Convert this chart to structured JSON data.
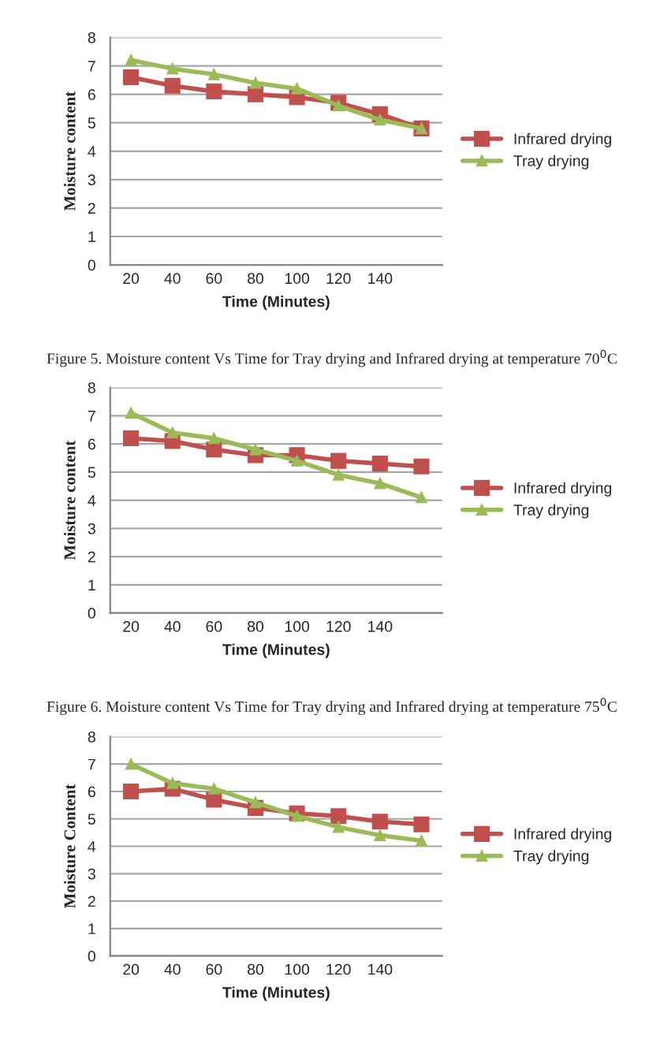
{
  "chart_data": [
    {
      "type": "line",
      "xlabel": "Time (Minutes)",
      "ylabel": "Moisture content",
      "categories": [
        "20",
        "40",
        "60",
        "80",
        "100",
        "120",
        "140",
        null
      ],
      "ylim": [
        0,
        8
      ],
      "yticks": [
        0,
        1,
        2,
        3,
        4,
        5,
        6,
        7,
        8
      ],
      "grid": "y",
      "legend": "right",
      "series": [
        {
          "name": "Infrared drying",
          "color": "#c0504d",
          "marker": "square",
          "values": [
            6.6,
            6.3,
            6.1,
            6.0,
            5.9,
            5.7,
            5.3,
            4.8
          ]
        },
        {
          "name": "Tray drying",
          "color": "#9bbb59",
          "marker": "triangle",
          "values": [
            7.2,
            6.9,
            6.7,
            6.4,
            6.2,
            5.6,
            5.1,
            4.8
          ]
        }
      ],
      "annotations": [
        "Figure 5. Moisture content Vs Time for Tray drying and Infrared drying at temperature 70$^{0}$C"
      ]
    },
    {
      "type": "line",
      "xlabel": "Time (Minutes)",
      "ylabel": "Moisture content",
      "categories": [
        "20",
        "40",
        "60",
        "80",
        "100",
        "120",
        "140",
        null
      ],
      "ylim": [
        0,
        8
      ],
      "yticks": [
        0,
        1,
        2,
        3,
        4,
        5,
        6,
        7,
        8
      ],
      "grid": "y",
      "legend": "right",
      "series": [
        {
          "name": "Infrared drying",
          "color": "#c0504d",
          "marker": "square",
          "values": [
            6.2,
            6.1,
            5.8,
            5.6,
            5.6,
            5.4,
            5.3,
            5.2
          ]
        },
        {
          "name": "Tray drying",
          "color": "#9bbb59",
          "marker": "triangle",
          "values": [
            7.1,
            6.4,
            6.2,
            5.8,
            5.4,
            4.9,
            4.6,
            4.1
          ]
        }
      ],
      "annotations": [
        "Figure 6. Moisture content Vs Time for Tray drying and Infrared drying at temperature 75$^{0}$C"
      ]
    },
    {
      "type": "line",
      "xlabel": "Time (Minutes)",
      "ylabel": "Moisture Content",
      "categories": [
        "20",
        "40",
        "60",
        "80",
        "100",
        "120",
        "140",
        null
      ],
      "ylim": [
        0,
        8
      ],
      "yticks": [
        0,
        1,
        2,
        3,
        4,
        5,
        6,
        7,
        8
      ],
      "grid": "y",
      "legend": "right",
      "series": [
        {
          "name": "Infrared drying",
          "color": "#c0504d",
          "marker": "square",
          "values": [
            6.0,
            6.1,
            5.7,
            5.4,
            5.2,
            5.1,
            4.9,
            4.8
          ]
        },
        {
          "name": "Tray drying",
          "color": "#9bbb59",
          "marker": "triangle",
          "values": [
            7.0,
            6.3,
            6.1,
            5.6,
            5.1,
            4.7,
            4.4,
            4.2
          ]
        }
      ]
    }
  ]
}
